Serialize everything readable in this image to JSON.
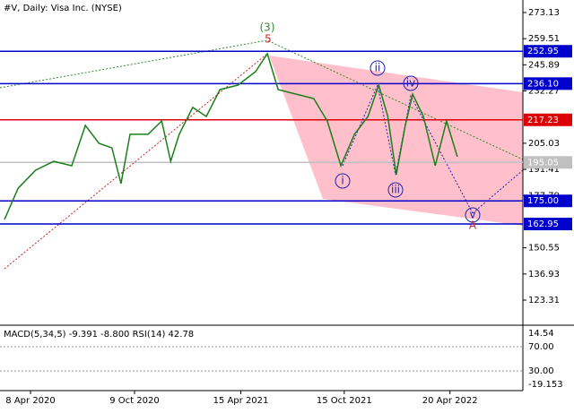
{
  "header": {
    "title": "#V, Daily:  Visa Inc. (NYSE)"
  },
  "chart_data": [
    {
      "type": "line",
      "color": "#1a7f1a",
      "x": [
        "2020-02-22",
        "2020-03-17",
        "2020-04-17",
        "2020-05-19",
        "2020-06-20",
        "2020-07-14",
        "2020-08-07",
        "2020-08-30",
        "2020-09-15",
        "2020-10-01",
        "2020-11-02",
        "2020-11-26",
        "2020-12-12",
        "2020-12-27",
        "2021-01-20",
        "2021-02-13",
        "2021-03-09",
        "2021-04-10",
        "2021-05-11",
        "2021-06-01",
        "2021-06-20",
        "2021-07-22",
        "2021-08-22",
        "2021-09-15",
        "2021-10-09",
        "2021-11-02",
        "2021-11-26",
        "2021-12-15",
        "2021-12-31",
        "2022-01-15",
        "2022-01-31",
        "2022-02-13",
        "2022-03-04",
        "2022-03-25",
        "2022-04-14",
        "2022-05-03"
      ],
      "values": [
        165.3,
        181.6,
        191,
        195.6,
        193.3,
        214.3,
        205,
        202.6,
        184,
        209.7,
        209.7,
        216.6,
        195.6,
        209.7,
        223.7,
        219,
        233,
        235.3,
        242.3,
        251.7,
        233,
        230.6,
        228.3,
        216.6,
        193.3,
        209.7,
        219,
        235.3,
        219,
        188.6,
        214.3,
        230.6,
        219,
        193.3,
        216.6,
        198
      ],
      "xlim": [
        "2020-02-14",
        "2022-08-27"
      ],
      "xticks": [
        {
          "value": "2020-04-08",
          "label": "8 Apr 2020"
        },
        {
          "value": "2020-10-09",
          "label": "9 Oct 2020"
        },
        {
          "value": "2021-04-15",
          "label": "15 Apr 2021"
        },
        {
          "value": "2021-10-15",
          "label": "15 Oct 2021"
        },
        {
          "value": "2022-04-20",
          "label": "20 Apr 2022"
        }
      ],
      "ylim": [
        110.7,
        279.66
      ],
      "yticks": [
        273.13,
        259.51,
        245.89,
        232.27,
        205.03,
        191.41,
        177.79,
        150.55,
        136.93,
        123.31
      ],
      "levels": [
        {
          "value": 252.95,
          "label": "252.95",
          "color": "#0000cc"
        },
        {
          "value": 236.1,
          "label": "236.10",
          "color": "#0000cc"
        },
        {
          "value": 217.23,
          "label": "217.23",
          "color": "#dd0000"
        },
        {
          "value": 195.05,
          "label": "195.05",
          "color": "#c0c0c0"
        },
        {
          "value": 175,
          "label": "175.00",
          "color": "#0000cc"
        },
        {
          "value": 162.95,
          "label": "162.95",
          "color": "#0000cc"
        }
      ],
      "annotations": [
        {
          "text": "(3)",
          "color": "#2e8b2e",
          "circled": false
        },
        {
          "text": "5",
          "color": "#cc2222",
          "circled": false
        },
        {
          "text": "ii",
          "color": "#2222aa",
          "circled": true
        },
        {
          "text": "iv",
          "color": "#2222aa",
          "circled": true
        },
        {
          "text": "i",
          "color": "#2222aa",
          "circled": true
        },
        {
          "text": "iii",
          "color": "#2222aa",
          "circled": true
        },
        {
          "text": "v",
          "color": "#2222aa",
          "circled": true
        },
        {
          "text": "A",
          "color": "#cc2222",
          "circled": false
        }
      ]
    },
    {
      "type": "indicator",
      "title": "MACD(5,34,5) -9.391 -8.800 RSI(14) 42.78",
      "axis_labels": [
        "14.54",
        "70.00",
        "30.00",
        "-19.153"
      ]
    }
  ]
}
